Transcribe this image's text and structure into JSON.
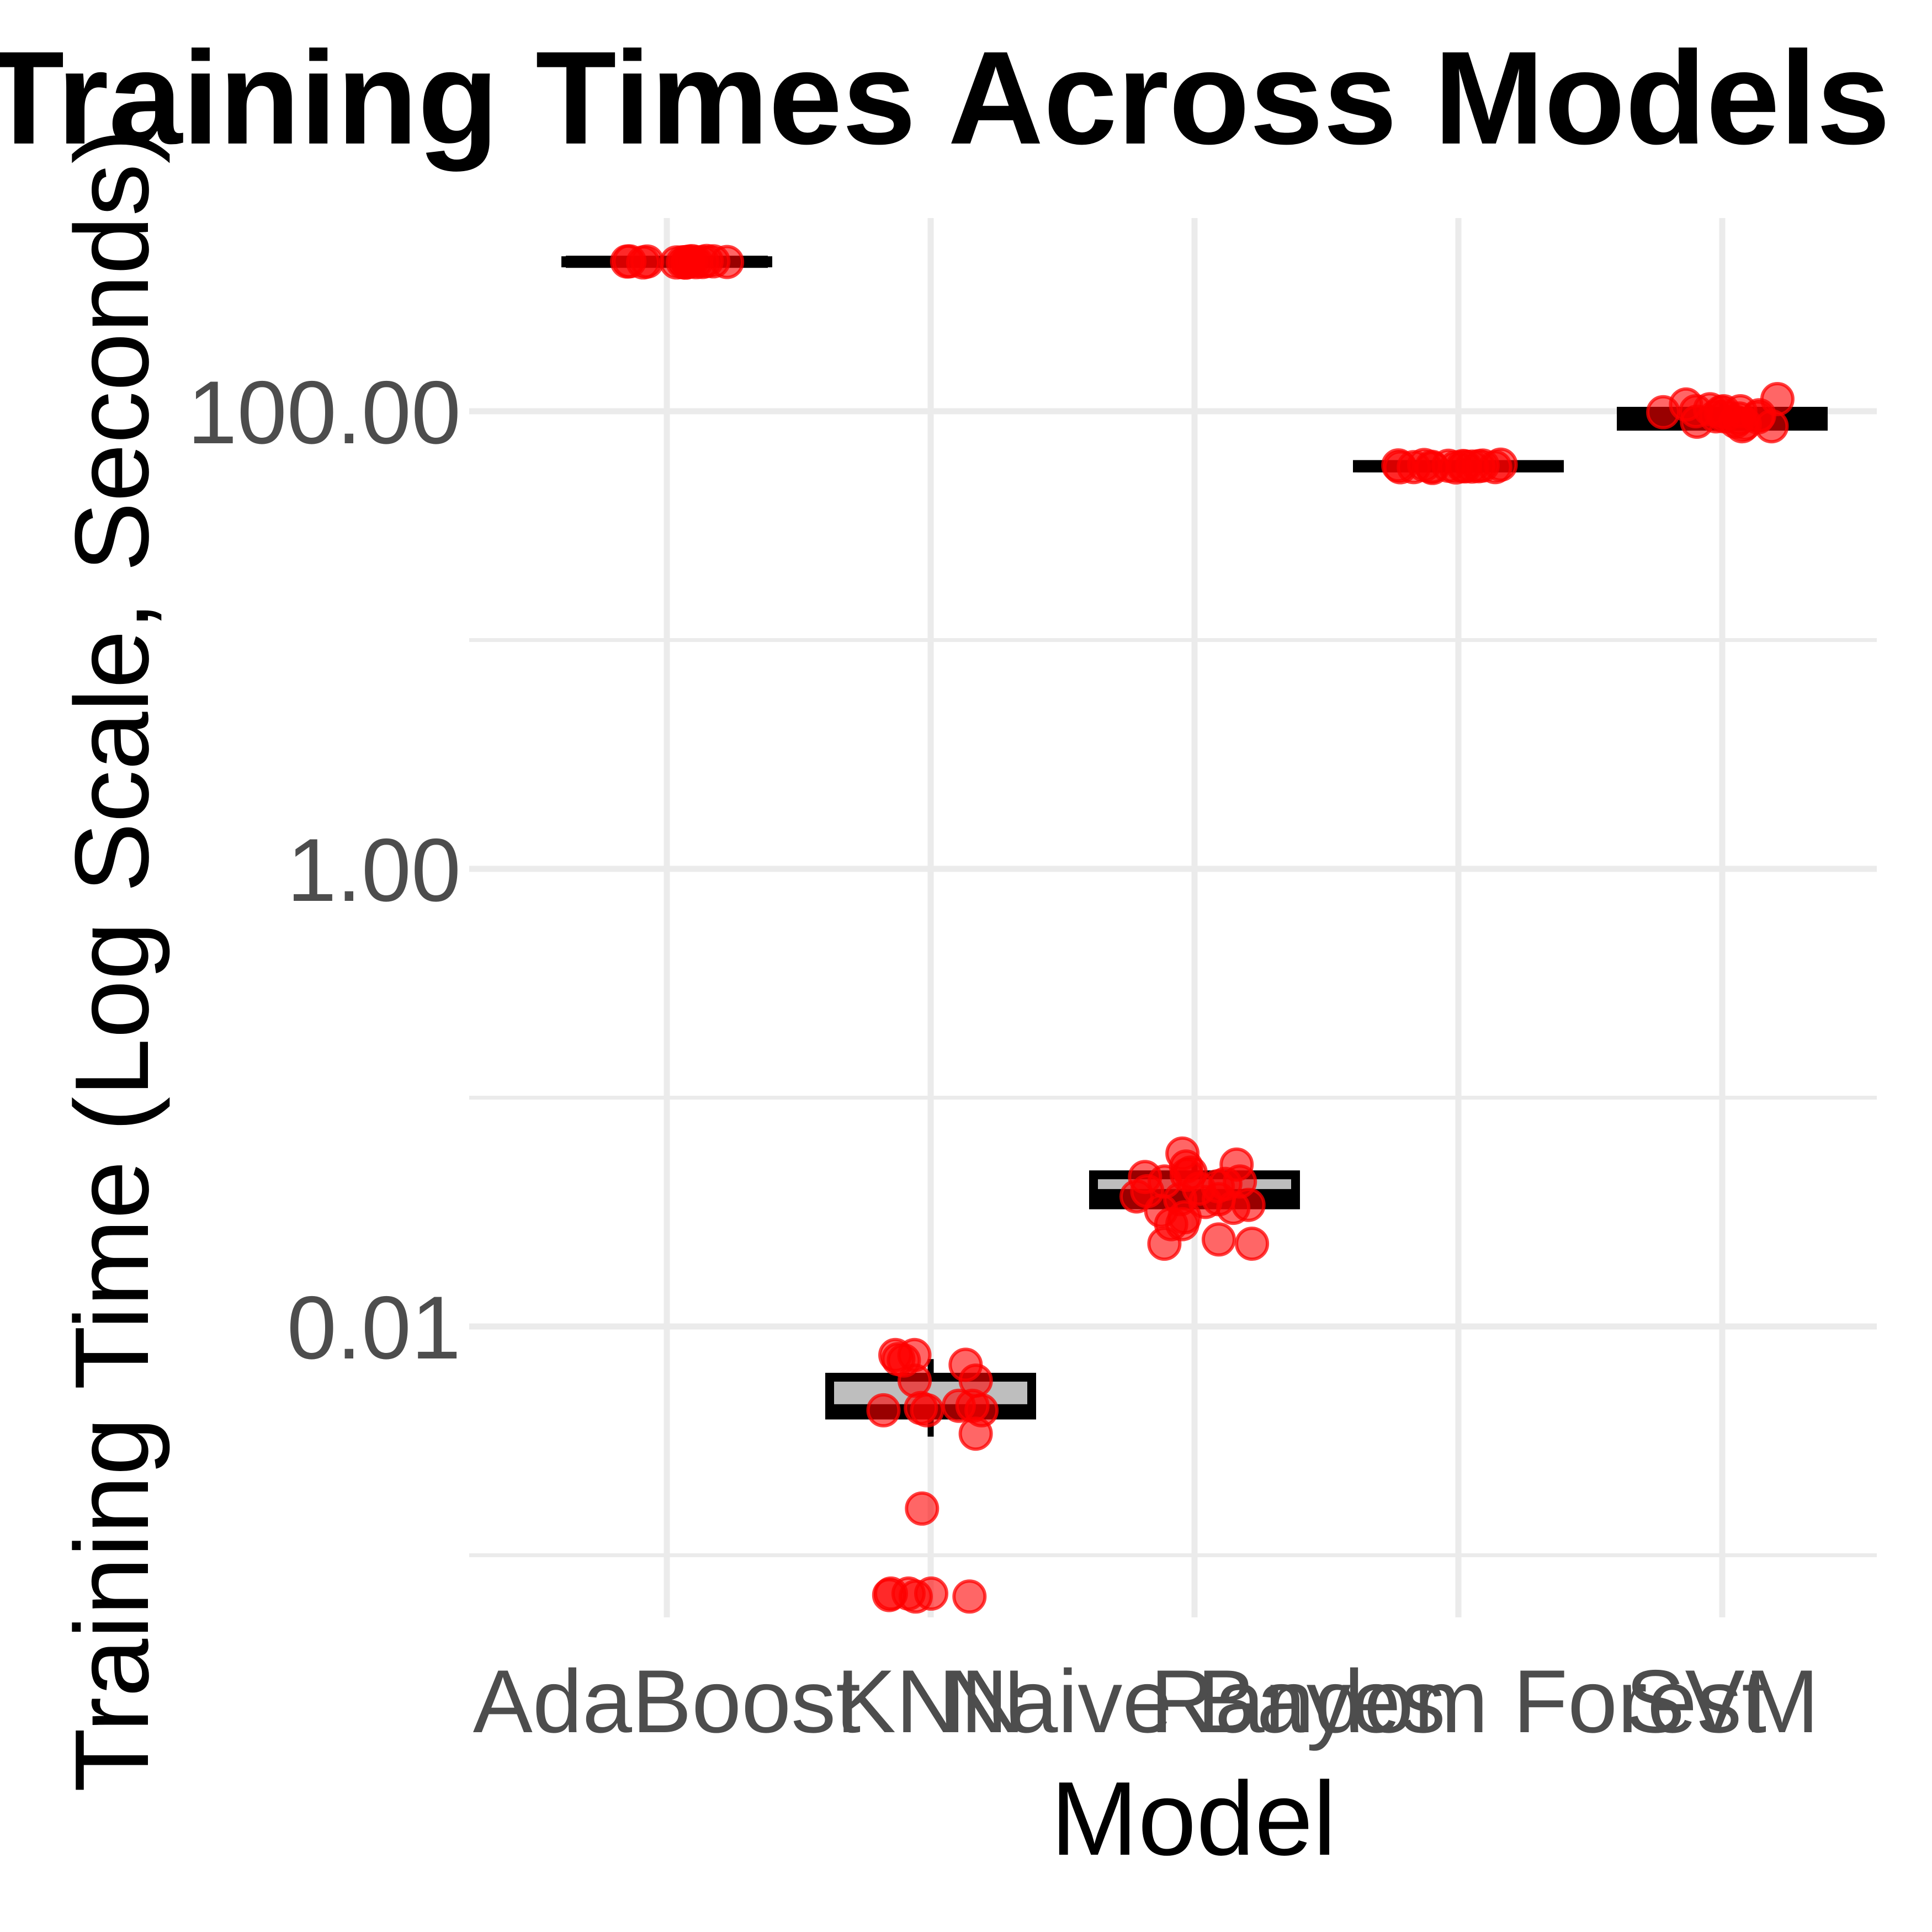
{
  "chart_data": {
    "type": "box",
    "title": "Training Times Across Models (Log Scale)",
    "xlabel": "Model",
    "ylabel": "Training Time (Log Scale, Seconds)",
    "yscale": "log10",
    "ylim": [
      0.00065,
      1500
    ],
    "yticks": [
      {
        "value": 0.01,
        "label": "0.01"
      },
      {
        "value": 1,
        "label": "1.00"
      },
      {
        "value": 100,
        "label": "100.00"
      }
    ],
    "y_minor_gridlines": [
      0.001,
      0.1,
      10,
      1000
    ],
    "grid": true,
    "colors": {
      "points": "#ff0000",
      "box_fill": "#bebebe",
      "box_line": "#000000",
      "grid": "#ebebeb",
      "tick_text": "#4d4d4d"
    },
    "categories": [
      "AdaBoost",
      "KNN",
      "Naive Bayes",
      "Random Forest",
      "SVM"
    ],
    "boxes": [
      {
        "category": "AdaBoost",
        "q1": 445,
        "median": 450,
        "q3": 455,
        "whisker_low": 440,
        "whisker_high": 460
      },
      {
        "category": "KNN",
        "q1": 0.0041,
        "median": 0.0043,
        "q3": 0.006,
        "whisker_low": 0.0033,
        "whisker_high": 0.0072
      },
      {
        "category": "Naive Bayes",
        "q1": 0.034,
        "median": 0.0375,
        "q3": 0.046,
        "whisker_low": 0.034,
        "whisker_high": 0.052
      },
      {
        "category": "Random Forest",
        "q1": 56.5,
        "median": 57.5,
        "q3": 58.5,
        "whisker_low": 56,
        "whisker_high": 59.5
      },
      {
        "category": "SVM",
        "q1": 86,
        "median": 94,
        "q3": 100,
        "whisker_low": 82,
        "whisker_high": 108
      }
    ],
    "points": {
      "AdaBoost": [
        446,
        447,
        448,
        449,
        450,
        450,
        451,
        452,
        453,
        454,
        448,
        451,
        449,
        452,
        447
      ],
      "KNN": [
        0.0072,
        0.0075,
        0.0068,
        0.0058,
        0.0045,
        0.0043,
        0.0043,
        0.0045,
        0.0075,
        0.0071,
        0.0058,
        0.0043,
        0.0034,
        0.0044,
        0.0016,
        0.00047,
        0.00066,
        0.00068,
        0.00067,
        0.00068,
        0.00066,
        0.00068
      ],
      "Naive Bayes": [
        0.023,
        0.047,
        0.042,
        0.032,
        0.046,
        0.043,
        0.033,
        0.028,
        0.04,
        0.051,
        0.036,
        0.039,
        0.035,
        0.045,
        0.041,
        0.028,
        0.024,
        0.043,
        0.036,
        0.057,
        0.03,
        0.034,
        0.05,
        0.037,
        0.023
      ],
      "Random Forest": [
        57,
        57.5,
        58,
        56.5,
        57.2,
        57.8,
        58.2,
        57,
        56.8,
        57.6,
        58.4,
        57.3,
        57.9,
        56.9,
        57.4
      ],
      "SVM": [
        95,
        100,
        86,
        90,
        99,
        113,
        107,
        95,
        86,
        90,
        99,
        93,
        100,
        102,
        96,
        88,
        100,
        94
      ]
    }
  }
}
